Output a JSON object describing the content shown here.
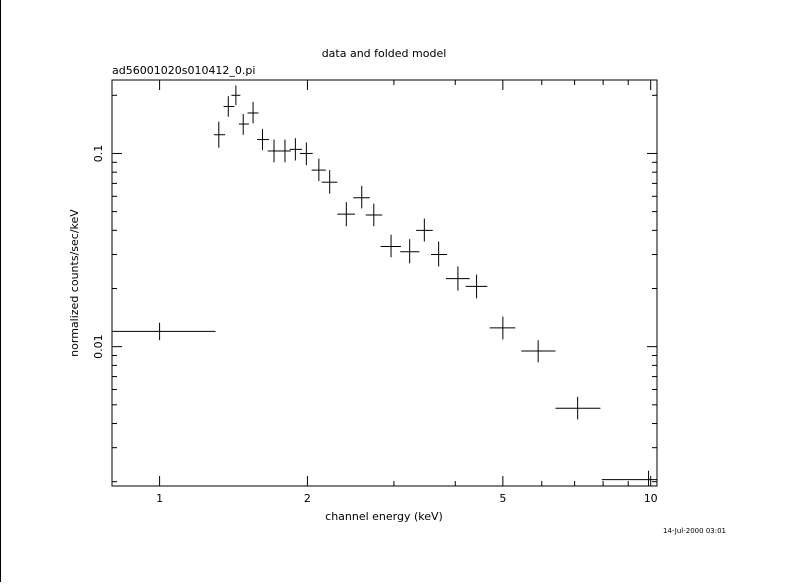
{
  "chart_data": {
    "type": "scatter",
    "title": "data and folded model",
    "subtitle": "ad56001020s010412_0.pi",
    "xlabel": "channel energy (keV)",
    "ylabel": "normalized counts/sec/keV",
    "xscale": "log",
    "yscale": "log",
    "xlim": [
      0.8,
      10.3
    ],
    "ylim": [
      0.0019,
      0.24
    ],
    "x_ticks": [
      {
        "value": 1,
        "label": "1"
      },
      {
        "value": 2,
        "label": "2"
      },
      {
        "value": 5,
        "label": "5"
      },
      {
        "value": 10,
        "label": "10"
      }
    ],
    "y_ticks": [
      {
        "value": 0.1,
        "label": "0.1"
      },
      {
        "value": 0.01,
        "label": "0.01"
      }
    ],
    "timestamp": "14-Jul-2000 03:01",
    "grid": false,
    "points": [
      {
        "x": 1.0,
        "xlo": 0.8,
        "xhi": 1.3,
        "y": 0.012,
        "ylo": 0.0108,
        "yhi": 0.0133
      },
      {
        "x": 1.32,
        "xlo": 1.29,
        "xhi": 1.36,
        "y": 0.125,
        "ylo": 0.107,
        "yhi": 0.146
      },
      {
        "x": 1.38,
        "xlo": 1.35,
        "xhi": 1.42,
        "y": 0.175,
        "ylo": 0.155,
        "yhi": 0.198
      },
      {
        "x": 1.43,
        "xlo": 1.4,
        "xhi": 1.46,
        "y": 0.2,
        "ylo": 0.178,
        "yhi": 0.225
      },
      {
        "x": 1.48,
        "xlo": 1.45,
        "xhi": 1.52,
        "y": 0.142,
        "ylo": 0.125,
        "yhi": 0.16
      },
      {
        "x": 1.55,
        "xlo": 1.51,
        "xhi": 1.59,
        "y": 0.162,
        "ylo": 0.143,
        "yhi": 0.185
      },
      {
        "x": 1.62,
        "xlo": 1.58,
        "xhi": 1.67,
        "y": 0.118,
        "ylo": 0.104,
        "yhi": 0.134
      },
      {
        "x": 1.71,
        "xlo": 1.66,
        "xhi": 1.76,
        "y": 0.103,
        "ylo": 0.09,
        "yhi": 0.118
      },
      {
        "x": 1.8,
        "xlo": 1.75,
        "xhi": 1.85,
        "y": 0.103,
        "ylo": 0.09,
        "yhi": 0.118
      },
      {
        "x": 1.89,
        "xlo": 1.84,
        "xhi": 1.95,
        "y": 0.105,
        "ylo": 0.092,
        "yhi": 0.12
      },
      {
        "x": 1.99,
        "xlo": 1.93,
        "xhi": 2.05,
        "y": 0.1,
        "ylo": 0.087,
        "yhi": 0.114
      },
      {
        "x": 2.11,
        "xlo": 2.04,
        "xhi": 2.18,
        "y": 0.082,
        "ylo": 0.072,
        "yhi": 0.094
      },
      {
        "x": 2.22,
        "xlo": 2.14,
        "xhi": 2.3,
        "y": 0.071,
        "ylo": 0.062,
        "yhi": 0.082
      },
      {
        "x": 2.4,
        "xlo": 2.3,
        "xhi": 2.5,
        "y": 0.0485,
        "ylo": 0.042,
        "yhi": 0.056
      },
      {
        "x": 2.58,
        "xlo": 2.48,
        "xhi": 2.68,
        "y": 0.059,
        "ylo": 0.052,
        "yhi": 0.068
      },
      {
        "x": 2.73,
        "xlo": 2.63,
        "xhi": 2.84,
        "y": 0.048,
        "ylo": 0.042,
        "yhi": 0.055
      },
      {
        "x": 2.96,
        "xlo": 2.82,
        "xhi": 3.1,
        "y": 0.033,
        "ylo": 0.029,
        "yhi": 0.038
      },
      {
        "x": 3.23,
        "xlo": 3.09,
        "xhi": 3.38,
        "y": 0.031,
        "ylo": 0.027,
        "yhi": 0.036
      },
      {
        "x": 3.46,
        "xlo": 3.33,
        "xhi": 3.6,
        "y": 0.04,
        "ylo": 0.035,
        "yhi": 0.046
      },
      {
        "x": 3.7,
        "xlo": 3.57,
        "xhi": 3.85,
        "y": 0.03,
        "ylo": 0.026,
        "yhi": 0.035
      },
      {
        "x": 4.05,
        "xlo": 3.83,
        "xhi": 4.28,
        "y": 0.0225,
        "ylo": 0.0195,
        "yhi": 0.026
      },
      {
        "x": 4.42,
        "xlo": 4.2,
        "xhi": 4.65,
        "y": 0.0205,
        "ylo": 0.0178,
        "yhi": 0.0236
      },
      {
        "x": 5.0,
        "xlo": 4.7,
        "xhi": 5.3,
        "y": 0.0125,
        "ylo": 0.0109,
        "yhi": 0.0143
      },
      {
        "x": 5.9,
        "xlo": 5.45,
        "xhi": 6.4,
        "y": 0.0095,
        "ylo": 0.0083,
        "yhi": 0.0108
      },
      {
        "x": 7.1,
        "xlo": 6.4,
        "xhi": 7.9,
        "y": 0.0048,
        "ylo": 0.0042,
        "yhi": 0.0055
      },
      {
        "x": 9.9,
        "xlo": 7.95,
        "xhi": 10.3,
        "y": 0.00205,
        "ylo": 0.0019,
        "yhi": 0.00228
      }
    ]
  }
}
